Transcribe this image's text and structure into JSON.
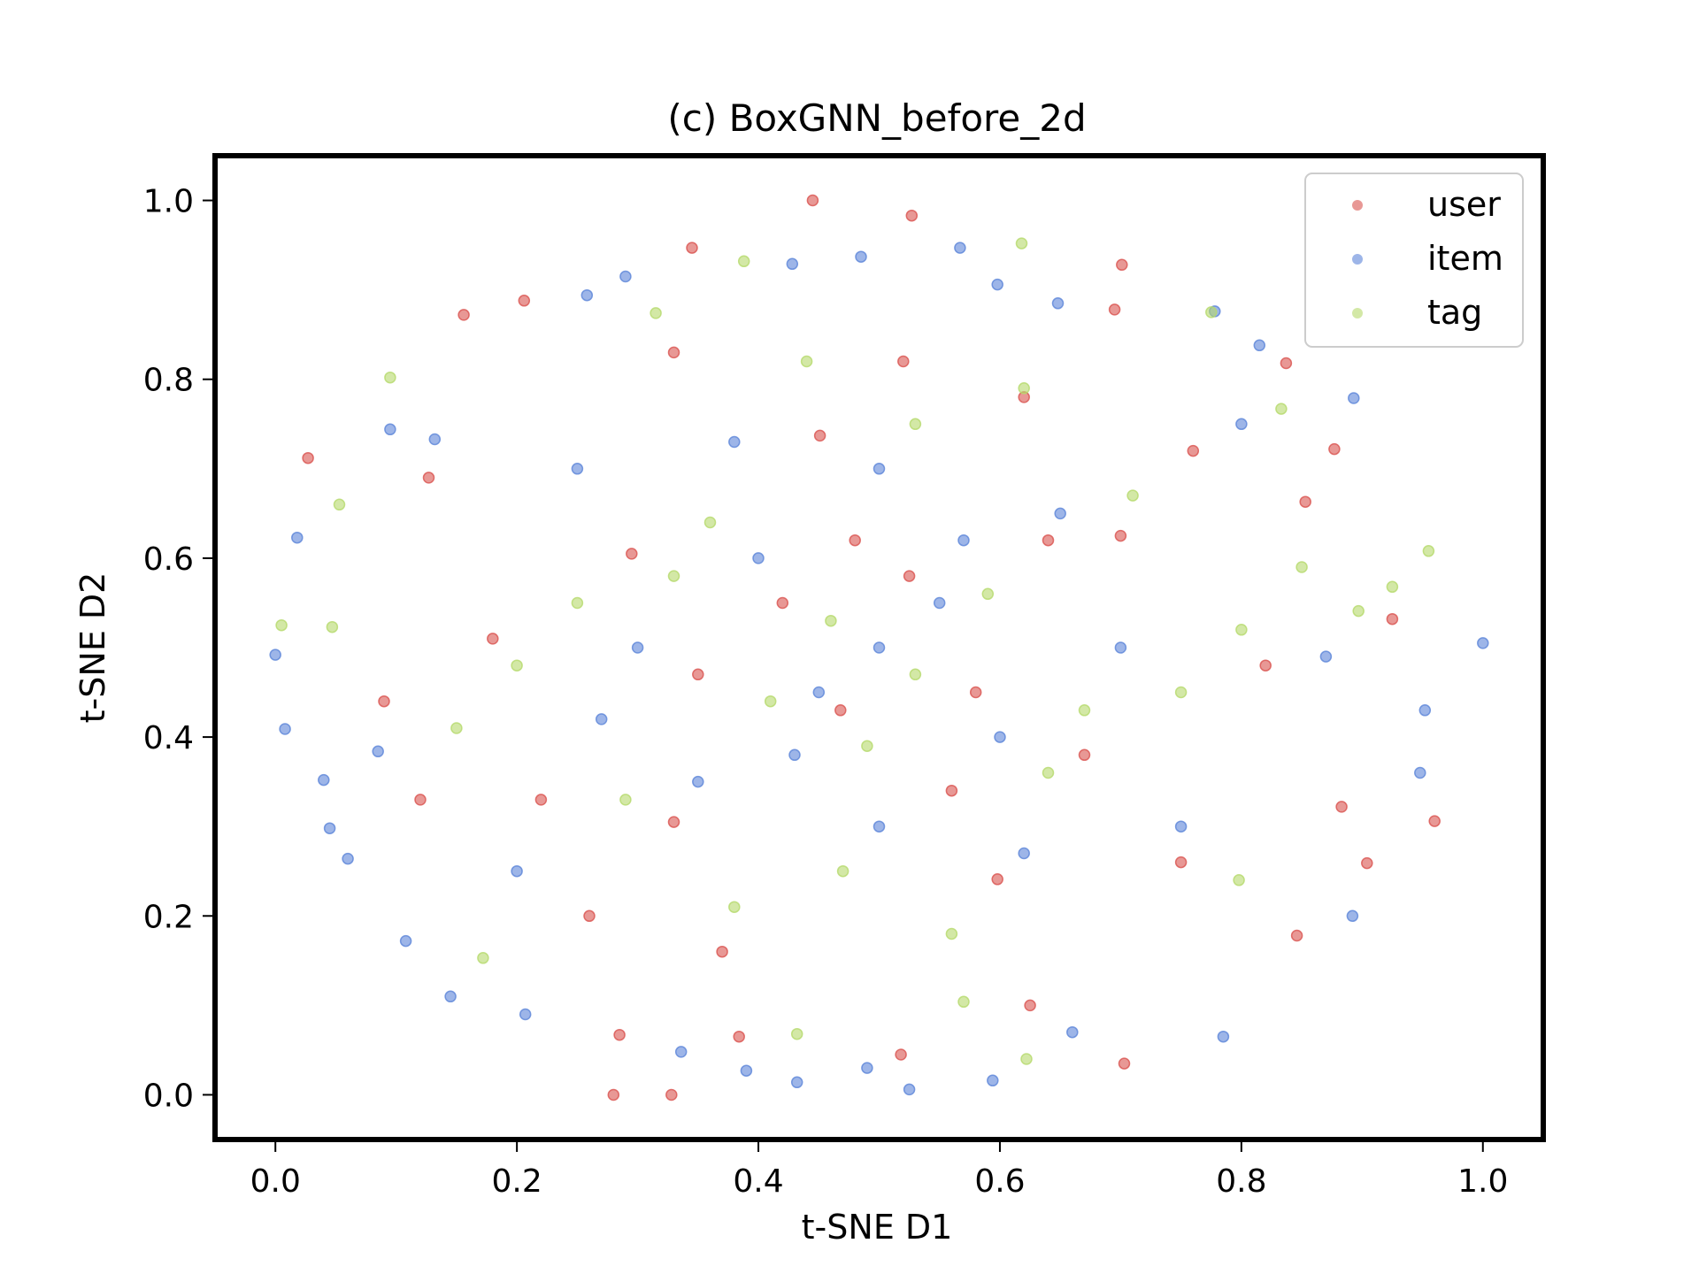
{
  "chart_data": {
    "type": "scatter",
    "title": "(c) BoxGNN_before_2d",
    "xlabel": "t-SNE D1",
    "ylabel": "t-SNE D2",
    "xlim": [
      -0.05,
      1.05
    ],
    "ylim": [
      -0.05,
      1.05
    ],
    "xticks": [
      "0.0",
      "0.2",
      "0.4",
      "0.6",
      "0.8",
      "1.0"
    ],
    "yticks": [
      "0.0",
      "0.2",
      "0.4",
      "0.6",
      "0.8",
      "1.0"
    ],
    "xtick_values": [
      0.0,
      0.2,
      0.4,
      0.6,
      0.8,
      1.0
    ],
    "ytick_values": [
      0.0,
      0.2,
      0.4,
      0.6,
      0.8,
      1.0
    ],
    "grid": false,
    "legend_position": "top-right",
    "point_count_note": "dense cloud of ~2000 points per all series; representative points listed",
    "series": [
      {
        "name": "user",
        "color": "#d9534f",
        "points": [
          [
            0.445,
            1.0
          ],
          [
            0.527,
            0.983
          ],
          [
            0.345,
            0.947
          ],
          [
            0.701,
            0.928
          ],
          [
            0.695,
            0.878
          ],
          [
            0.206,
            0.888
          ],
          [
            0.156,
            0.872
          ],
          [
            0.837,
            0.818
          ],
          [
            0.027,
            0.712
          ],
          [
            0.127,
            0.69
          ],
          [
            0.853,
            0.663
          ],
          [
            0.451,
            0.737
          ],
          [
            0.877,
            0.722
          ],
          [
            0.925,
            0.532
          ],
          [
            0.96,
            0.306
          ],
          [
            0.904,
            0.259
          ],
          [
            0.883,
            0.322
          ],
          [
            0.846,
            0.178
          ],
          [
            0.703,
            0.035
          ],
          [
            0.328,
            0.0
          ],
          [
            0.28,
            0.0
          ],
          [
            0.285,
            0.067
          ],
          [
            0.384,
            0.065
          ],
          [
            0.518,
            0.045
          ],
          [
            0.625,
            0.1
          ],
          [
            0.598,
            0.241
          ],
          [
            0.525,
            0.58
          ],
          [
            0.468,
            0.43
          ],
          [
            0.295,
            0.605
          ],
          [
            0.64,
            0.62
          ],
          [
            0.7,
            0.625
          ],
          [
            0.33,
            0.305
          ],
          [
            0.75,
            0.26
          ],
          [
            0.58,
            0.45
          ],
          [
            0.22,
            0.33
          ],
          [
            0.42,
            0.55
          ],
          [
            0.56,
            0.34
          ],
          [
            0.35,
            0.47
          ],
          [
            0.67,
            0.38
          ],
          [
            0.48,
            0.62
          ],
          [
            0.76,
            0.72
          ],
          [
            0.18,
            0.51
          ],
          [
            0.26,
            0.2
          ],
          [
            0.62,
            0.78
          ],
          [
            0.33,
            0.83
          ],
          [
            0.82,
            0.48
          ],
          [
            0.52,
            0.82
          ],
          [
            0.12,
            0.33
          ],
          [
            0.09,
            0.44
          ],
          [
            0.37,
            0.16
          ]
        ]
      },
      {
        "name": "item",
        "color": "#5b84d8",
        "points": [
          [
            0.0,
            0.492
          ],
          [
            0.008,
            0.409
          ],
          [
            0.018,
            0.623
          ],
          [
            0.04,
            0.352
          ],
          [
            0.045,
            0.298
          ],
          [
            0.06,
            0.264
          ],
          [
            0.085,
            0.384
          ],
          [
            0.095,
            0.744
          ],
          [
            0.108,
            0.172
          ],
          [
            0.132,
            0.733
          ],
          [
            0.145,
            0.11
          ],
          [
            0.207,
            0.09
          ],
          [
            0.258,
            0.894
          ],
          [
            0.29,
            0.915
          ],
          [
            0.428,
            0.929
          ],
          [
            0.485,
            0.937
          ],
          [
            0.567,
            0.947
          ],
          [
            0.598,
            0.906
          ],
          [
            0.648,
            0.885
          ],
          [
            0.778,
            0.876
          ],
          [
            0.815,
            0.838
          ],
          [
            0.893,
            0.779
          ],
          [
            0.87,
            0.49
          ],
          [
            1.0,
            0.505
          ],
          [
            0.952,
            0.43
          ],
          [
            0.948,
            0.36
          ],
          [
            0.892,
            0.2
          ],
          [
            0.785,
            0.065
          ],
          [
            0.66,
            0.07
          ],
          [
            0.594,
            0.016
          ],
          [
            0.525,
            0.006
          ],
          [
            0.49,
            0.03
          ],
          [
            0.432,
            0.014
          ],
          [
            0.39,
            0.027
          ],
          [
            0.336,
            0.048
          ],
          [
            0.45,
            0.45
          ],
          [
            0.5,
            0.5
          ],
          [
            0.55,
            0.55
          ],
          [
            0.4,
            0.6
          ],
          [
            0.6,
            0.4
          ],
          [
            0.35,
            0.35
          ],
          [
            0.65,
            0.65
          ],
          [
            0.3,
            0.5
          ],
          [
            0.7,
            0.5
          ],
          [
            0.5,
            0.3
          ],
          [
            0.5,
            0.7
          ],
          [
            0.25,
            0.7
          ],
          [
            0.75,
            0.3
          ],
          [
            0.2,
            0.25
          ],
          [
            0.8,
            0.75
          ],
          [
            0.43,
            0.38
          ],
          [
            0.57,
            0.62
          ],
          [
            0.62,
            0.27
          ],
          [
            0.38,
            0.73
          ],
          [
            0.27,
            0.42
          ]
        ]
      },
      {
        "name": "tag",
        "color": "#b5d96b",
        "points": [
          [
            0.618,
            0.952
          ],
          [
            0.388,
            0.932
          ],
          [
            0.095,
            0.802
          ],
          [
            0.955,
            0.608
          ],
          [
            0.005,
            0.525
          ],
          [
            0.047,
            0.523
          ],
          [
            0.053,
            0.66
          ],
          [
            0.172,
            0.153
          ],
          [
            0.622,
            0.04
          ],
          [
            0.432,
            0.068
          ],
          [
            0.57,
            0.104
          ],
          [
            0.798,
            0.24
          ],
          [
            0.833,
            0.767
          ],
          [
            0.775,
            0.875
          ],
          [
            0.315,
            0.874
          ],
          [
            0.925,
            0.568
          ],
          [
            0.897,
            0.541
          ],
          [
            0.46,
            0.53
          ],
          [
            0.53,
            0.47
          ],
          [
            0.41,
            0.44
          ],
          [
            0.59,
            0.56
          ],
          [
            0.33,
            0.58
          ],
          [
            0.67,
            0.43
          ],
          [
            0.47,
            0.25
          ],
          [
            0.53,
            0.75
          ],
          [
            0.25,
            0.55
          ],
          [
            0.75,
            0.45
          ],
          [
            0.2,
            0.48
          ],
          [
            0.8,
            0.52
          ],
          [
            0.38,
            0.21
          ],
          [
            0.62,
            0.79
          ],
          [
            0.29,
            0.33
          ],
          [
            0.71,
            0.67
          ],
          [
            0.44,
            0.82
          ],
          [
            0.56,
            0.18
          ],
          [
            0.15,
            0.41
          ],
          [
            0.85,
            0.59
          ],
          [
            0.36,
            0.64
          ],
          [
            0.64,
            0.36
          ],
          [
            0.49,
            0.39
          ]
        ]
      }
    ]
  }
}
